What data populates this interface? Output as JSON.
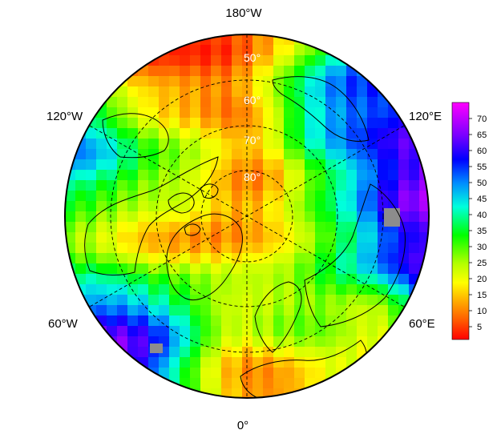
{
  "map": {
    "projection": "north-polar-stereographic",
    "longitude_labels": {
      "top": "180°W",
      "bottom": "0°",
      "upper_left": "120°W",
      "upper_right": "120°E",
      "lower_left": "60°W",
      "lower_right": "60°E"
    },
    "latitude_labels": [
      "50°",
      "60°",
      "70°",
      "80°"
    ],
    "missing_data_color": "#8c8c8c"
  },
  "colorbar": {
    "ticks": [
      "5",
      "10",
      "15",
      "20",
      "25",
      "30",
      "35",
      "40",
      "45",
      "50",
      "55",
      "60",
      "65",
      "70"
    ],
    "range": [
      1,
      75
    ],
    "colors": [
      "#ff0000",
      "#ff4a00",
      "#ff8c00",
      "#ffc800",
      "#ffff00",
      "#c8ff00",
      "#7cff00",
      "#00ff00",
      "#00ff80",
      "#00ffe0",
      "#00c0ff",
      "#0060ff",
      "#0000ff",
      "#5000ff",
      "#a000ff",
      "#e000ff",
      "#ff00ff"
    ]
  }
}
